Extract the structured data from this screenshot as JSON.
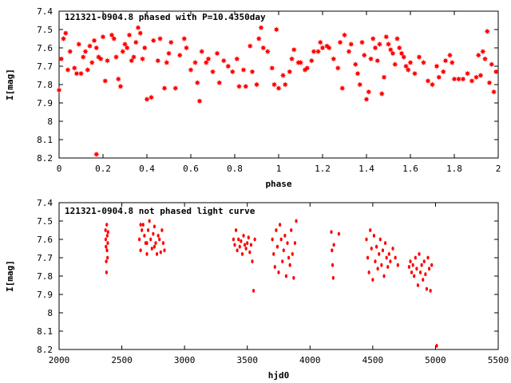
{
  "chart_data": [
    {
      "type": "scatter",
      "title": "121321-0904.8 phased with P=10.4350day",
      "xlabel": "phase",
      "ylabel": "I[mag]",
      "xlim": [
        0,
        2
      ],
      "ylim": [
        8.2,
        7.4
      ],
      "y_inverted": true,
      "grid": false,
      "marker_color": "#ff0000",
      "marker_shape": "filled-star",
      "x_ticks": [
        0,
        0.2,
        0.4,
        0.6,
        0.8,
        1,
        1.2,
        1.4,
        1.6,
        1.8,
        2
      ],
      "x_tick_labels": [
        "0",
        "0.2",
        "0.4",
        "0.6",
        "0.8",
        "1",
        "1.2",
        "1.4",
        "1.6",
        "1.8",
        "2"
      ],
      "y_ticks": [
        7.4,
        7.5,
        7.6,
        7.7,
        7.8,
        7.9,
        8,
        8.1,
        8.2
      ],
      "y_tick_labels": [
        "7.4",
        "7.5",
        "7.6",
        "7.7",
        "7.8",
        "7.9",
        "8",
        "8.1",
        "8.2"
      ],
      "points": [
        [
          0.0,
          7.83
        ],
        [
          0.01,
          7.66
        ],
        [
          0.02,
          7.55
        ],
        [
          0.03,
          7.52
        ],
        [
          0.04,
          7.72
        ],
        [
          0.05,
          7.62
        ],
        [
          0.07,
          7.71
        ],
        [
          0.08,
          7.74
        ],
        [
          0.09,
          7.58
        ],
        [
          0.1,
          7.74
        ],
        [
          0.11,
          7.65
        ],
        [
          0.12,
          7.62
        ],
        [
          0.13,
          7.72
        ],
        [
          0.14,
          7.59
        ],
        [
          0.15,
          7.68
        ],
        [
          0.16,
          7.56
        ],
        [
          0.17,
          7.6
        ],
        [
          0.18,
          7.65
        ],
        [
          0.19,
          7.66
        ],
        [
          0.2,
          7.54
        ],
        [
          0.21,
          7.78
        ],
        [
          0.22,
          7.67
        ],
        [
          0.17,
          8.18
        ],
        [
          0.24,
          7.53
        ],
        [
          0.25,
          7.55
        ],
        [
          0.26,
          7.65
        ],
        [
          0.27,
          7.77
        ],
        [
          0.28,
          7.81
        ],
        [
          0.29,
          7.62
        ],
        [
          0.3,
          7.58
        ],
        [
          0.31,
          7.6
        ],
        [
          0.32,
          7.53
        ],
        [
          0.33,
          7.67
        ],
        [
          0.34,
          7.65
        ],
        [
          0.35,
          7.57
        ],
        [
          0.36,
          7.49
        ],
        [
          0.37,
          7.52
        ],
        [
          0.38,
          7.66
        ],
        [
          0.39,
          7.6
        ],
        [
          0.4,
          7.88
        ],
        [
          0.42,
          7.87
        ],
        [
          0.43,
          7.56
        ],
        [
          0.45,
          7.67
        ],
        [
          0.46,
          7.55
        ],
        [
          0.48,
          7.82
        ],
        [
          0.49,
          7.68
        ],
        [
          0.5,
          7.63
        ],
        [
          0.51,
          7.57
        ],
        [
          0.53,
          7.82
        ],
        [
          0.55,
          7.64
        ],
        [
          0.57,
          7.55
        ],
        [
          0.58,
          7.6
        ],
        [
          0.6,
          7.72
        ],
        [
          0.62,
          7.68
        ],
        [
          0.63,
          7.79
        ],
        [
          0.64,
          7.89
        ],
        [
          0.65,
          7.62
        ],
        [
          0.67,
          7.68
        ],
        [
          0.68,
          7.66
        ],
        [
          0.7,
          7.73
        ],
        [
          0.72,
          7.63
        ],
        [
          0.73,
          7.79
        ],
        [
          0.75,
          7.67
        ],
        [
          0.77,
          7.7
        ],
        [
          0.79,
          7.73
        ],
        [
          0.81,
          7.66
        ],
        [
          0.82,
          7.81
        ],
        [
          0.84,
          7.72
        ],
        [
          0.85,
          7.81
        ],
        [
          0.87,
          7.59
        ],
        [
          0.88,
          7.73
        ],
        [
          0.9,
          7.8
        ],
        [
          0.91,
          7.55
        ],
        [
          0.92,
          7.49
        ],
        [
          0.93,
          7.6
        ],
        [
          0.95,
          7.62
        ],
        [
          0.97,
          7.71
        ],
        [
          0.98,
          7.8
        ],
        [
          0.99,
          7.5
        ],
        [
          1.0,
          7.82
        ],
        [
          1.02,
          7.75
        ],
        [
          1.03,
          7.8
        ],
        [
          1.05,
          7.73
        ],
        [
          1.06,
          7.66
        ],
        [
          1.07,
          7.61
        ],
        [
          1.09,
          7.68
        ],
        [
          1.1,
          7.68
        ],
        [
          1.12,
          7.72
        ],
        [
          1.13,
          7.71
        ],
        [
          1.15,
          7.67
        ],
        [
          1.16,
          7.62
        ],
        [
          1.18,
          7.62
        ],
        [
          1.19,
          7.57
        ],
        [
          1.2,
          7.6
        ],
        [
          1.22,
          7.59
        ],
        [
          1.23,
          7.6
        ],
        [
          1.25,
          7.66
        ],
        [
          1.27,
          7.71
        ],
        [
          1.28,
          7.57
        ],
        [
          1.29,
          7.82
        ],
        [
          1.3,
          7.53
        ],
        [
          1.32,
          7.62
        ],
        [
          1.33,
          7.58
        ],
        [
          1.35,
          7.69
        ],
        [
          1.36,
          7.74
        ],
        [
          1.37,
          7.8
        ],
        [
          1.38,
          7.57
        ],
        [
          1.39,
          7.64
        ],
        [
          1.4,
          7.88
        ],
        [
          1.41,
          7.84
        ],
        [
          1.42,
          7.66
        ],
        [
          1.43,
          7.55
        ],
        [
          1.44,
          7.6
        ],
        [
          1.45,
          7.67
        ],
        [
          1.46,
          7.58
        ],
        [
          1.47,
          7.85
        ],
        [
          1.48,
          7.76
        ],
        [
          1.49,
          7.54
        ],
        [
          1.5,
          7.58
        ],
        [
          1.51,
          7.61
        ],
        [
          1.52,
          7.63
        ],
        [
          1.53,
          7.69
        ],
        [
          1.54,
          7.55
        ],
        [
          1.55,
          7.6
        ],
        [
          1.56,
          7.63
        ],
        [
          1.57,
          7.65
        ],
        [
          1.58,
          7.7
        ],
        [
          1.59,
          7.72
        ],
        [
          1.6,
          7.68
        ],
        [
          1.62,
          7.74
        ],
        [
          1.64,
          7.65
        ],
        [
          1.66,
          7.68
        ],
        [
          1.68,
          7.78
        ],
        [
          1.7,
          7.8
        ],
        [
          1.72,
          7.7
        ],
        [
          1.73,
          7.76
        ],
        [
          1.75,
          7.73
        ],
        [
          1.76,
          7.67
        ],
        [
          1.78,
          7.64
        ],
        [
          1.79,
          7.68
        ],
        [
          1.8,
          7.77
        ],
        [
          1.82,
          7.77
        ],
        [
          1.84,
          7.77
        ],
        [
          1.86,
          7.74
        ],
        [
          1.88,
          7.78
        ],
        [
          1.9,
          7.76
        ],
        [
          1.91,
          7.64
        ],
        [
          1.92,
          7.75
        ],
        [
          1.93,
          7.62
        ],
        [
          1.94,
          7.66
        ],
        [
          1.95,
          7.51
        ],
        [
          1.96,
          7.79
        ],
        [
          1.97,
          7.69
        ],
        [
          1.98,
          7.84
        ],
        [
          1.99,
          7.73
        ]
      ]
    },
    {
      "type": "scatter",
      "title": "121321-0904.8 not phased light curve",
      "xlabel": "hjd0",
      "ylabel": "I[mag]",
      "xlim": [
        2000,
        5500
      ],
      "ylim": [
        8.2,
        7.4
      ],
      "y_inverted": true,
      "grid": false,
      "marker_color": "#ff0000",
      "marker_shape": "filled-dot",
      "x_ticks": [
        2000,
        2500,
        3000,
        3500,
        4000,
        4500,
        5000,
        5500
      ],
      "x_tick_labels": [
        "2000",
        "2500",
        "3000",
        "3500",
        "4000",
        "4500",
        "5000",
        "5500"
      ],
      "y_ticks": [
        7.4,
        7.5,
        7.6,
        7.7,
        7.8,
        7.9,
        8,
        8.1,
        8.2
      ],
      "y_tick_labels": [
        "7.4",
        "7.5",
        "7.6",
        "7.7",
        "7.8",
        "7.9",
        "8",
        "8.1",
        "8.2"
      ],
      "points": [
        [
          2370,
          7.55
        ],
        [
          2372,
          7.6
        ],
        [
          2374,
          7.64
        ],
        [
          2376,
          7.72
        ],
        [
          2378,
          7.78
        ],
        [
          2380,
          7.52
        ],
        [
          2382,
          7.66
        ],
        [
          2384,
          7.58
        ],
        [
          2386,
          7.7
        ],
        [
          2388,
          7.62
        ],
        [
          2390,
          7.56
        ],
        [
          2640,
          7.6
        ],
        [
          2650,
          7.66
        ],
        [
          2660,
          7.55
        ],
        [
          2670,
          7.52
        ],
        [
          2680,
          7.58
        ],
        [
          2690,
          7.62
        ],
        [
          2700,
          7.68
        ],
        [
          2710,
          7.55
        ],
        [
          2720,
          7.5
        ],
        [
          2730,
          7.6
        ],
        [
          2740,
          7.65
        ],
        [
          2750,
          7.57
        ],
        [
          2760,
          7.53
        ],
        [
          2770,
          7.62
        ],
        [
          2780,
          7.68
        ],
        [
          2790,
          7.58
        ],
        [
          2800,
          7.6
        ],
        [
          2810,
          7.67
        ],
        [
          2820,
          7.55
        ],
        [
          2830,
          7.62
        ],
        [
          2840,
          7.66
        ],
        [
          2650,
          7.52
        ],
        [
          2700,
          7.62
        ],
        [
          2760,
          7.64
        ],
        [
          3390,
          7.6
        ],
        [
          3400,
          7.63
        ],
        [
          3410,
          7.55
        ],
        [
          3420,
          7.66
        ],
        [
          3430,
          7.6
        ],
        [
          3440,
          7.64
        ],
        [
          3450,
          7.61
        ],
        [
          3460,
          7.68
        ],
        [
          3470,
          7.58
        ],
        [
          3480,
          7.63
        ],
        [
          3490,
          7.65
        ],
        [
          3500,
          7.62
        ],
        [
          3510,
          7.59
        ],
        [
          3520,
          7.67
        ],
        [
          3530,
          7.63
        ],
        [
          3540,
          7.72
        ],
        [
          3550,
          7.88
        ],
        [
          3560,
          7.6
        ],
        [
          3700,
          7.6
        ],
        [
          3710,
          7.68
        ],
        [
          3720,
          7.75
        ],
        [
          3730,
          7.55
        ],
        [
          3740,
          7.64
        ],
        [
          3750,
          7.78
        ],
        [
          3760,
          7.52
        ],
        [
          3770,
          7.6
        ],
        [
          3780,
          7.72
        ],
        [
          3790,
          7.66
        ],
        [
          3800,
          7.58
        ],
        [
          3810,
          7.8
        ],
        [
          3820,
          7.62
        ],
        [
          3830,
          7.7
        ],
        [
          3840,
          7.74
        ],
        [
          3850,
          7.55
        ],
        [
          3860,
          7.68
        ],
        [
          3870,
          7.81
        ],
        [
          3880,
          7.62
        ],
        [
          3890,
          7.5
        ],
        [
          4170,
          7.56
        ],
        [
          4175,
          7.66
        ],
        [
          4180,
          7.74
        ],
        [
          4185,
          7.81
        ],
        [
          4190,
          7.63
        ],
        [
          4230,
          7.57
        ],
        [
          4450,
          7.6
        ],
        [
          4460,
          7.7
        ],
        [
          4470,
          7.78
        ],
        [
          4480,
          7.55
        ],
        [
          4490,
          7.65
        ],
        [
          4500,
          7.82
        ],
        [
          4510,
          7.58
        ],
        [
          4520,
          7.72
        ],
        [
          4530,
          7.64
        ],
        [
          4540,
          7.76
        ],
        [
          4550,
          7.68
        ],
        [
          4560,
          7.6
        ],
        [
          4570,
          7.74
        ],
        [
          4580,
          7.66
        ],
        [
          4590,
          7.8
        ],
        [
          4600,
          7.62
        ],
        [
          4610,
          7.7
        ],
        [
          4620,
          7.75
        ],
        [
          4630,
          7.68
        ],
        [
          4640,
          7.72
        ],
        [
          4660,
          7.65
        ],
        [
          4680,
          7.7
        ],
        [
          4700,
          7.74
        ],
        [
          4790,
          7.75
        ],
        [
          4800,
          7.72
        ],
        [
          4810,
          7.78
        ],
        [
          4820,
          7.74
        ],
        [
          4830,
          7.8
        ],
        [
          4840,
          7.7
        ],
        [
          4850,
          7.76
        ],
        [
          4860,
          7.85
        ],
        [
          4870,
          7.68
        ],
        [
          4880,
          7.78
        ],
        [
          4890,
          7.74
        ],
        [
          4900,
          7.82
        ],
        [
          4910,
          7.72
        ],
        [
          4920,
          7.79
        ],
        [
          4930,
          7.87
        ],
        [
          4940,
          7.7
        ],
        [
          4950,
          7.76
        ],
        [
          4960,
          7.88
        ],
        [
          4970,
          7.74
        ],
        [
          5010,
          8.18
        ]
      ]
    }
  ]
}
